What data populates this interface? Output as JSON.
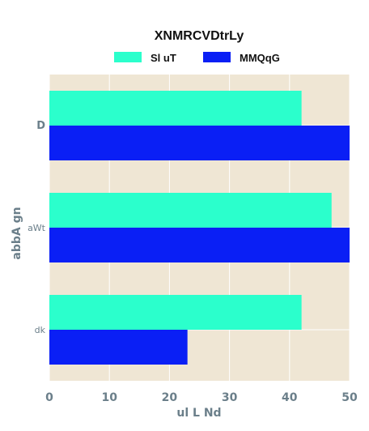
{
  "chart_data": {
    "type": "bar",
    "orientation": "horizontal",
    "title": "XNMRCVDtrLy",
    "xlabel": "ul  L Nd",
    "ylabel": "abbA gn",
    "categories": [
      "D",
      "aWt",
      "dk"
    ],
    "series": [
      {
        "name": "Sl uT",
        "color": "#2bffcc",
        "values": [
          42,
          47,
          42
        ]
      },
      {
        "name": "MMQqG",
        "color": "#0a1ff5",
        "values": [
          50,
          50,
          23
        ]
      }
    ],
    "xlim": [
      0,
      50
    ],
    "xticks": [
      0,
      10,
      20,
      30,
      40,
      50
    ],
    "grid": true,
    "legend_position": "top",
    "background_color": "#efe6d4",
    "grid_color": "#ffffff"
  }
}
